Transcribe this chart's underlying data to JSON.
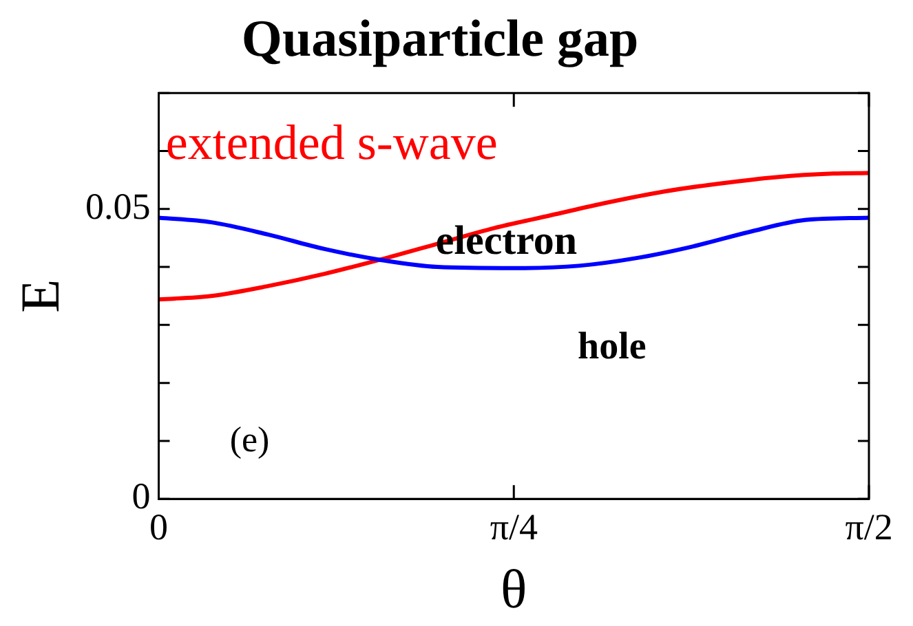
{
  "chart_data": {
    "type": "line",
    "title": "Quasiparticle gap",
    "xlabel": "θ",
    "ylabel": "E",
    "xlim": [
      0,
      1.5708
    ],
    "xticks": [
      0,
      {
        "value": 0.7854,
        "label": "π/4"
      },
      {
        "value": 1.5708,
        "label": "π/2"
      }
    ],
    "ylim": [
      0,
      0.07
    ],
    "yticks": [
      0,
      {
        "value": 0.01,
        "label": null
      },
      {
        "value": 0.02,
        "label": null
      },
      {
        "value": 0.03,
        "label": null
      },
      {
        "value": 0.04,
        "label": null
      },
      0.05,
      {
        "value": 0.06,
        "label": null
      },
      {
        "value": 0.07,
        "label": null
      }
    ],
    "grid": false,
    "legend": false,
    "marker": "none",
    "line_style": "solid",
    "annotations": [
      "extended s-wave",
      "electron",
      "hole",
      "(e)"
    ],
    "series": [
      {
        "color": "#0000ff",
        "x": [
          0,
          0.1163,
          0.2414,
          0.3664,
          0.4915,
          0.6166,
          0.7854,
          0.9292,
          1.0543,
          1.1794,
          1.3044,
          1.4295,
          1.5708
        ],
        "values": [
          0.0485,
          0.0477,
          0.0456,
          0.0431,
          0.0412,
          0.04,
          0.0398,
          0.0402,
          0.0415,
          0.0435,
          0.046,
          0.0481,
          0.0485
        ]
      },
      {
        "color": "#ff0000",
        "x": [
          0,
          0.1163,
          0.2414,
          0.3664,
          0.4915,
          0.6166,
          0.7416,
          0.8667,
          0.9918,
          1.1169,
          1.2419,
          1.367,
          1.492,
          1.5708
        ],
        "values": [
          0.0344,
          0.035,
          0.0367,
          0.0388,
          0.0413,
          0.044,
          0.0467,
          0.0489,
          0.0511,
          0.053,
          0.0544,
          0.0555,
          0.0561,
          0.0562
        ]
      }
    ]
  }
}
